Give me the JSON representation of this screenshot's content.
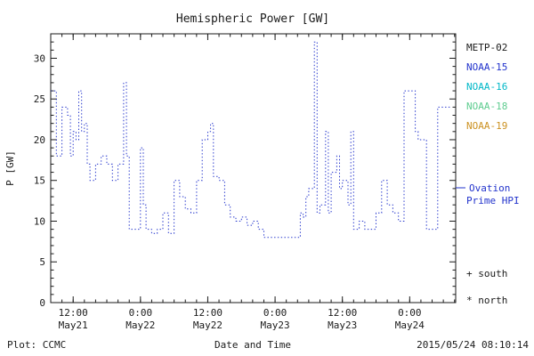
{
  "title": "Hemispheric Power [GW]",
  "y_axis": {
    "label": "P [GW]",
    "tick_values": [
      0,
      5,
      10,
      15,
      20,
      25,
      30
    ]
  },
  "x_axis": {
    "label": "Date and Time",
    "ticks": [
      {
        "t": 4,
        "time": "12:00",
        "date": "May21"
      },
      {
        "t": 16,
        "time": "0:00",
        "date": "May22"
      },
      {
        "t": 28,
        "time": "12:00",
        "date": "May22"
      },
      {
        "t": 40,
        "time": "0:00",
        "date": "May23"
      },
      {
        "t": 52,
        "time": "12:00",
        "date": "May23"
      },
      {
        "t": 64,
        "time": "0:00",
        "date": "May24"
      }
    ]
  },
  "legend": {
    "items": [
      {
        "label": "METP-02",
        "color": "#1a1a1a"
      },
      {
        "label": "NOAA-15",
        "color": "#2233cc"
      },
      {
        "label": "NOAA-16",
        "color": "#00b8c8"
      },
      {
        "label": "NOAA-18",
        "color": "#5ecc8f"
      },
      {
        "label": "NOAA-19",
        "color": "#cc9222"
      }
    ]
  },
  "annotations": {
    "ovation_color": "#2233cc",
    "ovation_line1": "Ovation",
    "ovation_line2": "Prime HPI",
    "south": "+ south",
    "north": "* north"
  },
  "footer": {
    "plot_credit": "Plot: CCMC",
    "timestamp": "2015/05/24 08:10:14"
  },
  "chart_data": {
    "type": "line",
    "style": "step-dotted",
    "title": "Hemispheric Power [GW]",
    "xlabel": "Date and Time",
    "ylabel": "P [GW]",
    "legend_position": "right-outside",
    "grid": false,
    "line_color": "#2233cc",
    "ylim": [
      0,
      33
    ],
    "t_range": [
      0,
      72.2
    ],
    "t_unit": "hours after 2015-05-21 08:00 (read from axis ticks)",
    "t": [
      0,
      1,
      2,
      3,
      3.5,
      4,
      4.5,
      5,
      5.5,
      6,
      6.5,
      7,
      8,
      9,
      10,
      11,
      12,
      13,
      13.5,
      14,
      15,
      16,
      16.5,
      17,
      18,
      19,
      20,
      21,
      22,
      23,
      24,
      25,
      26,
      27,
      28,
      28.5,
      29,
      30,
      31,
      32,
      33,
      34,
      35,
      36,
      37,
      38,
      40,
      42,
      43,
      44,
      44.5,
      45,
      45.5,
      46,
      46.5,
      47,
      47.5,
      48,
      48.5,
      49,
      49.5,
      50,
      50.5,
      51,
      51.5,
      52,
      53,
      53.5,
      54,
      55,
      56,
      57,
      58,
      59,
      60,
      61,
      62,
      63,
      64,
      65,
      65.5,
      66,
      67,
      68,
      69,
      71.2
    ],
    "gw": [
      26,
      18,
      24,
      23,
      18,
      21,
      20,
      26,
      21,
      22,
      17,
      15,
      17,
      18,
      17,
      15,
      17,
      27,
      18,
      9,
      9,
      19,
      12,
      9,
      8.5,
      9,
      11,
      8.5,
      15,
      13,
      11.5,
      11,
      15,
      20,
      21,
      22,
      15.5,
      15,
      12,
      10.5,
      10,
      10.5,
      9.5,
      10,
      9,
      8,
      8,
      8,
      8,
      8,
      11,
      10.5,
      13,
      14,
      14,
      32,
      11,
      12,
      12,
      21,
      11,
      16,
      16,
      18,
      14,
      15,
      12,
      21,
      9,
      10,
      9,
      9,
      11,
      15,
      12,
      11,
      10,
      26,
      26,
      21,
      20,
      20,
      9,
      9,
      24,
      24
    ]
  }
}
